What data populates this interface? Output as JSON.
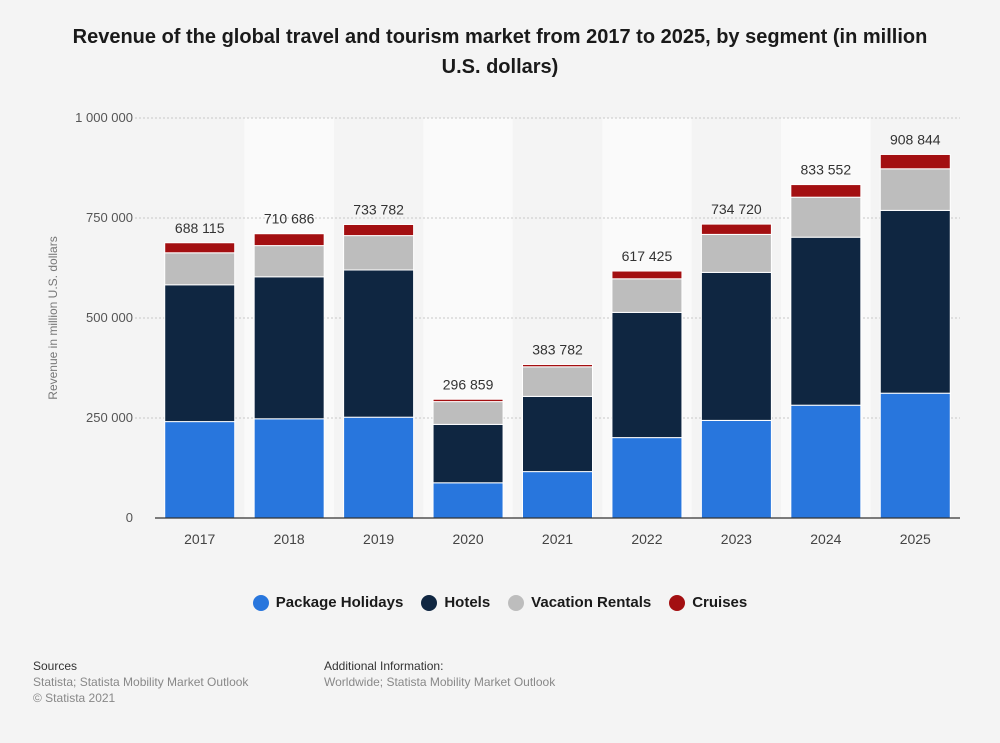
{
  "chart_data": {
    "type": "bar",
    "stacked": true,
    "title": "Revenue of the global travel and tourism market from 2017 to 2025, by segment (in million U.S. dollars)",
    "ylabel": "Revenue in million U.S. dollars",
    "xlabel": "",
    "ylim": [
      0,
      1000000
    ],
    "yticks": [
      0,
      250000,
      500000,
      750000,
      1000000
    ],
    "ytick_labels": [
      "0",
      "250 000",
      "500 000",
      "750 000",
      "1 000 000"
    ],
    "categories": [
      "2017",
      "2018",
      "2019",
      "2020",
      "2021",
      "2022",
      "2023",
      "2024",
      "2025"
    ],
    "series": [
      {
        "name": "Package Holidays",
        "color": "#2876dd",
        "values": [
          241000,
          248000,
          252000,
          88000,
          116000,
          201000,
          244000,
          282000,
          312000
        ]
      },
      {
        "name": "Hotels",
        "color": "#0f2641",
        "values": [
          342000,
          355000,
          368000,
          146000,
          188000,
          313000,
          370000,
          420000,
          457000
        ]
      },
      {
        "name": "Vacation Rentals",
        "color": "#bdbdbd",
        "values": [
          80000,
          78000,
          86000,
          57000,
          74000,
          84000,
          95000,
          100000,
          104000
        ]
      },
      {
        "name": "Cruises",
        "color": "#a30f11",
        "values": [
          25115,
          29686,
          27782,
          5859,
          5782,
          19425,
          25720,
          31552,
          35844
        ]
      }
    ],
    "totals": [
      688115,
      710686,
      733782,
      296859,
      383782,
      617425,
      734720,
      833552,
      908844
    ],
    "total_labels": [
      "688 115",
      "710 686",
      "733 782",
      "296 859",
      "383 782",
      "617 425",
      "734 720",
      "833 552",
      "908 844"
    ],
    "grid": true,
    "legend_position": "bottom"
  },
  "footer": {
    "sources_title": "Sources",
    "sources_line1": "Statista; Statista Mobility Market Outlook",
    "sources_line2": "© Statista 2021",
    "info_title": "Additional Information:",
    "info_line1": "Worldwide; Statista Mobility Market Outlook"
  }
}
